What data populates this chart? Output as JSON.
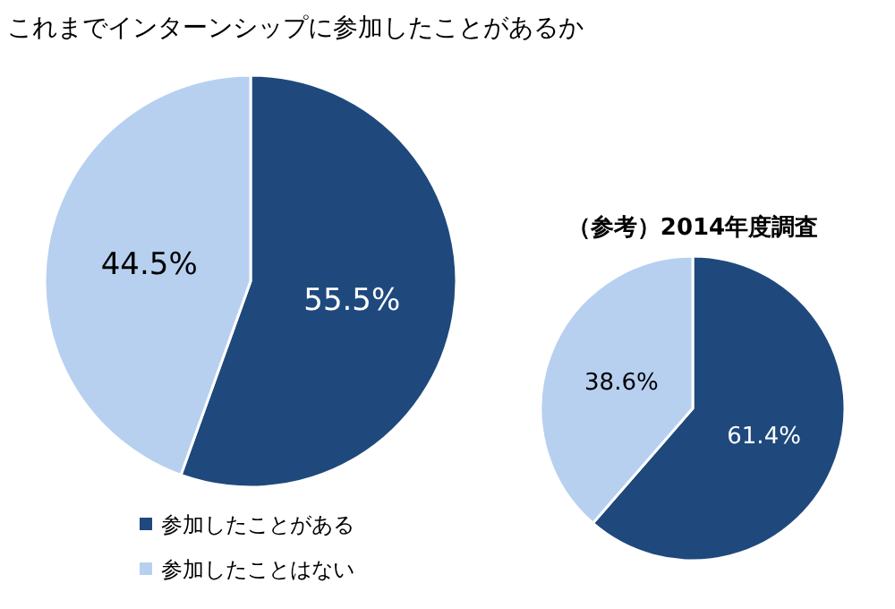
{
  "chart_data": [
    {
      "type": "pie",
      "title": "これまでインターンシップに参加したことがあるか",
      "categories": [
        "参加したことがある",
        "参加したことはない"
      ],
      "values": [
        55.5,
        44.5
      ],
      "value_labels": [
        "55.5%",
        "44.5%"
      ],
      "colors": [
        "#1f497d",
        "#b7d0ef"
      ],
      "legend": "bottom left"
    },
    {
      "type": "pie",
      "title": "（参考）2014年度調査",
      "categories": [
        null,
        null
      ],
      "values": [
        61.4,
        38.6
      ],
      "value_labels": [
        "61.4%",
        "38.6%"
      ],
      "colors": [
        "#1f497d",
        "#b7d0ef"
      ]
    }
  ]
}
